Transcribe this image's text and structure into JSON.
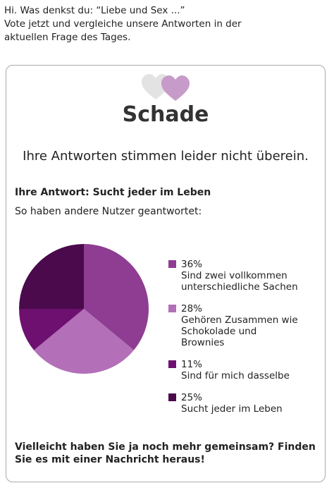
{
  "intro": {
    "lines": [
      "Hi. Was denkst du: “Liebe und Sex ...”",
      "Vote jetzt und vergleiche unsere Antworten in der",
      "aktuellen Frage des Tages."
    ]
  },
  "card": {
    "title": "Schade",
    "subtitle": "Ihre Antworten stimmen leider nicht überein.",
    "answer": "Ihre Antwort: Sucht jeder im Leben",
    "others": "So haben andere Nutzer geantwortet:",
    "outro": "Vielleicht haben Sie ja noch mehr gemeinsam? Finden Sie es mit einer Nachricht heraus!"
  },
  "chart_data": {
    "type": "pie",
    "categories": [
      "Sind zwei vollkommen unterschiedliche Sachen",
      "Gehören Zusammen wie Schokolade und Brownies",
      "Sind für mich dasselbe",
      "Sucht jeder im Leben"
    ],
    "values": [
      36,
      28,
      11,
      25
    ],
    "value_labels": [
      "36%",
      "28%",
      "11%",
      "25%"
    ],
    "colors": [
      "#8e3d92",
      "#b36fb8",
      "#6e1070",
      "#4a0a4c"
    ]
  }
}
